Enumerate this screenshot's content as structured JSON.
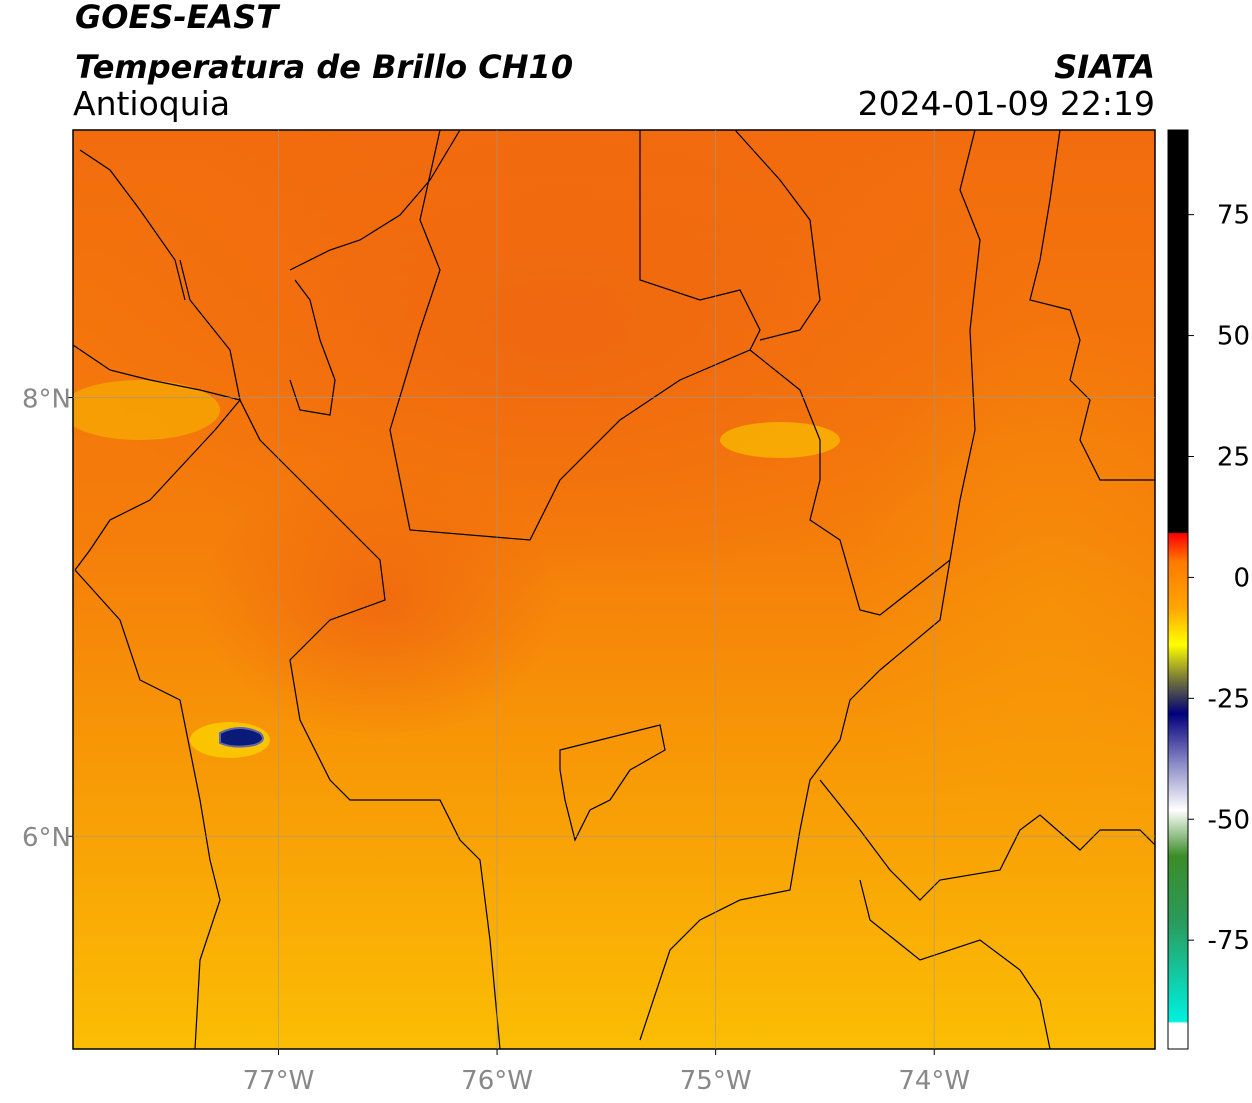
{
  "header": {
    "title": "GOES-EAST",
    "subtitle": "Temperatura de Brillo CH10",
    "region": "Antioquia",
    "source": "SIATA",
    "timestamp": "2024-01-09 22:19"
  },
  "map": {
    "xlim": [
      -77.94,
      -72.99
    ],
    "ylim": [
      5.03,
      9.22
    ],
    "xticks": [
      {
        "value": -77,
        "label": "77°W"
      },
      {
        "value": -76,
        "label": "76°W"
      },
      {
        "value": -75,
        "label": "75°W"
      },
      {
        "value": -74,
        "label": "74°W"
      }
    ],
    "yticks": [
      {
        "value": 6,
        "label": "6°N"
      },
      {
        "value": 8,
        "label": "8°N"
      }
    ],
    "grid": true
  },
  "colorbar": {
    "lim": [
      -97.5,
      92.5
    ],
    "ticks": [
      75,
      50,
      25,
      0,
      -25,
      -50,
      -75
    ]
  }
}
